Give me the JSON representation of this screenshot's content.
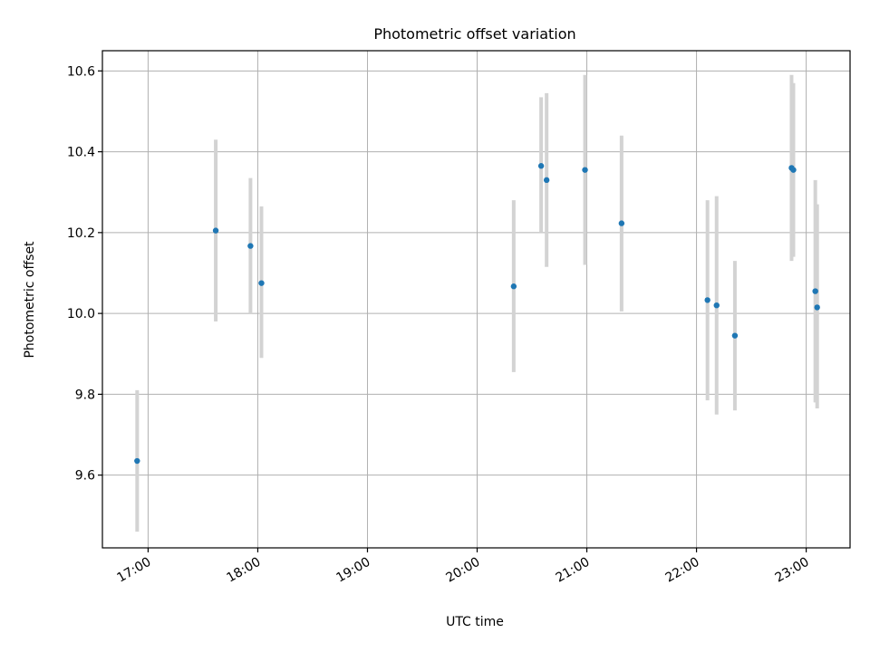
{
  "chart_data": {
    "type": "scatter",
    "title": "Photometric offset variation",
    "xlabel": "UTC time",
    "ylabel": "Photometric offset",
    "x_axis": "time",
    "xlim": [
      "16:35",
      "23:24"
    ],
    "ylim": [
      9.42,
      10.65
    ],
    "x_ticks": [
      "17:00",
      "18:00",
      "19:00",
      "20:00",
      "21:00",
      "22:00",
      "23:00"
    ],
    "y_ticks": [
      9.6,
      9.8,
      10.0,
      10.2,
      10.4,
      10.6
    ],
    "y_tick_labels": [
      "9.6",
      "9.8",
      "10.0",
      "10.2",
      "10.4",
      "10.6"
    ],
    "grid": true,
    "colors": {
      "points": "#1f77b4",
      "error_bars": "#d3d3d3"
    },
    "series": [
      {
        "points": [
          {
            "x": "16:54",
            "y": 9.635,
            "ylow": 9.46,
            "yhigh": 9.81
          },
          {
            "x": "17:37",
            "y": 10.205,
            "ylow": 9.98,
            "yhigh": 10.43
          },
          {
            "x": "17:56",
            "y": 10.167,
            "ylow": 10.0,
            "yhigh": 10.335
          },
          {
            "x": "18:02",
            "y": 10.075,
            "ylow": 9.89,
            "yhigh": 10.265
          },
          {
            "x": "20:20",
            "y": 10.067,
            "ylow": 9.855,
            "yhigh": 10.28
          },
          {
            "x": "20:35",
            "y": 10.365,
            "ylow": 10.2,
            "yhigh": 10.535
          },
          {
            "x": "20:38",
            "y": 10.33,
            "ylow": 10.115,
            "yhigh": 10.545
          },
          {
            "x": "20:59",
            "y": 10.355,
            "ylow": 10.12,
            "yhigh": 10.59
          },
          {
            "x": "21:19",
            "y": 10.223,
            "ylow": 10.005,
            "yhigh": 10.44
          },
          {
            "x": "22:06",
            "y": 10.033,
            "ylow": 9.785,
            "yhigh": 10.28
          },
          {
            "x": "22:11",
            "y": 10.02,
            "ylow": 9.75,
            "yhigh": 10.29
          },
          {
            "x": "22:21",
            "y": 9.945,
            "ylow": 9.76,
            "yhigh": 10.13
          },
          {
            "x": "22:52",
            "y": 10.36,
            "ylow": 10.13,
            "yhigh": 10.59
          },
          {
            "x": "22:53",
            "y": 10.355,
            "ylow": 10.14,
            "yhigh": 10.57
          },
          {
            "x": "23:05",
            "y": 10.055,
            "ylow": 9.78,
            "yhigh": 10.33
          },
          {
            "x": "23:06",
            "y": 10.015,
            "ylow": 9.765,
            "yhigh": 10.27
          }
        ]
      }
    ]
  }
}
